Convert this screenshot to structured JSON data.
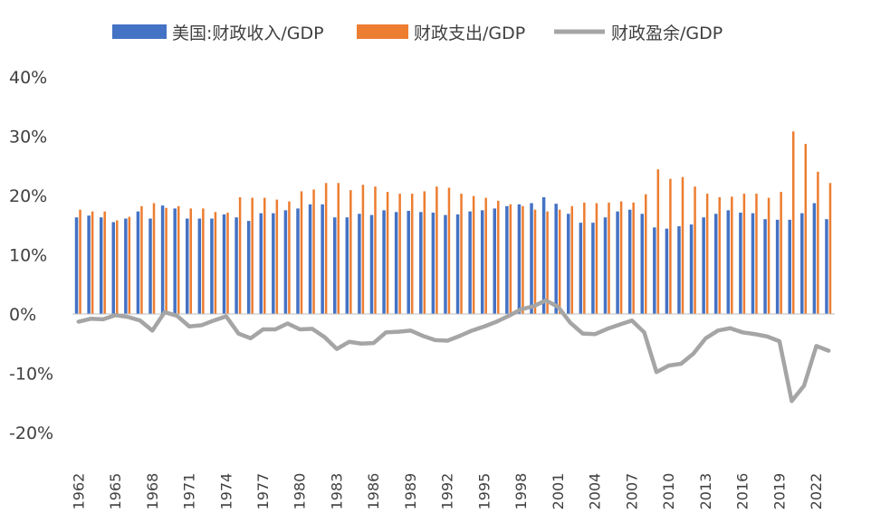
{
  "chart_data": {
    "type": "bar",
    "legend": {
      "position": "top",
      "items": [
        {
          "label": "美国:财政收入/GDP",
          "color": "#4472C4",
          "kind": "bar"
        },
        {
          "label": "财政支出/GDP",
          "color": "#ED7D31",
          "kind": "bar"
        },
        {
          "label": "财政盈余/GDP",
          "color": "#A5A5A5",
          "kind": "line"
        }
      ]
    },
    "y_ticks": [
      "40%",
      "30%",
      "20%",
      "10%",
      "0%",
      "-10%",
      "-20%"
    ],
    "ylim": [
      -20,
      40
    ],
    "grid": false,
    "x_tick_labels": [
      "1962",
      "1965",
      "1968",
      "1971",
      "1974",
      "1977",
      "1980",
      "1983",
      "1986",
      "1989",
      "1992",
      "1995",
      "1998",
      "2001",
      "2004",
      "2007",
      "2010",
      "2013",
      "2016",
      "2019",
      "2022"
    ],
    "categories": [
      "1962",
      "1963",
      "1964",
      "1965",
      "1966",
      "1967",
      "1968",
      "1969",
      "1970",
      "1971",
      "1972",
      "1973",
      "1974",
      "1975",
      "1976",
      "1977",
      "1978",
      "1979",
      "1980",
      "1981",
      "1982",
      "1983",
      "1984",
      "1985",
      "1986",
      "1987",
      "1988",
      "1989",
      "1990",
      "1991",
      "1992",
      "1993",
      "1994",
      "1995",
      "1996",
      "1997",
      "1998",
      "1999",
      "2000",
      "2001",
      "2002",
      "2003",
      "2004",
      "2005",
      "2006",
      "2007",
      "2008",
      "2009",
      "2010",
      "2011",
      "2012",
      "2013",
      "2014",
      "2015",
      "2016",
      "2017",
      "2018",
      "2019",
      "2020",
      "2021",
      "2022",
      "2023"
    ],
    "series": [
      {
        "name": "美国:财政收入/GDP",
        "type": "bar",
        "color": "#4472C4",
        "values": [
          16.3,
          16.6,
          16.3,
          15.5,
          16.1,
          17.3,
          16.1,
          18.3,
          17.8,
          16.1,
          16.1,
          16.1,
          16.8,
          16.3,
          15.7,
          17.0,
          17.0,
          17.5,
          17.8,
          18.5,
          18.5,
          16.3,
          16.3,
          16.9,
          16.7,
          17.5,
          17.2,
          17.4,
          17.2,
          17.1,
          16.7,
          16.8,
          17.3,
          17.5,
          17.8,
          18.2,
          18.5,
          18.7,
          19.7,
          18.6,
          16.9,
          15.4,
          15.4,
          16.3,
          17.3,
          17.6,
          16.9,
          14.6,
          14.4,
          14.8,
          15.1,
          16.3,
          16.9,
          17.5,
          17.1,
          17.0,
          16.0,
          15.9,
          15.9,
          17.0,
          18.7,
          16.0
        ]
      },
      {
        "name": "财政支出/GDP",
        "type": "bar",
        "color": "#ED7D31",
        "values": [
          17.6,
          17.3,
          17.3,
          15.8,
          16.4,
          18.2,
          18.7,
          17.9,
          18.2,
          17.8,
          17.8,
          17.2,
          17.1,
          19.7,
          19.6,
          19.6,
          19.3,
          19.0,
          20.7,
          21.0,
          22.1,
          22.1,
          20.9,
          21.8,
          21.5,
          20.6,
          20.3,
          20.3,
          20.7,
          21.5,
          21.3,
          20.3,
          19.9,
          19.6,
          19.1,
          18.5,
          18.2,
          17.6,
          17.3,
          17.6,
          18.2,
          18.8,
          18.7,
          18.8,
          19.0,
          18.8,
          20.2,
          24.4,
          22.8,
          23.1,
          21.5,
          20.3,
          19.7,
          19.8,
          20.3,
          20.3,
          19.6,
          20.6,
          30.8,
          28.7,
          24.0,
          22.1
        ]
      },
      {
        "name": "财政盈余/GDP",
        "type": "line",
        "color": "#A5A5A5",
        "values": [
          -1.3,
          -0.8,
          -0.9,
          -0.2,
          -0.5,
          -1.1,
          -2.8,
          0.3,
          -0.3,
          -2.1,
          -1.9,
          -1.1,
          -0.4,
          -3.3,
          -4.1,
          -2.6,
          -2.6,
          -1.6,
          -2.6,
          -2.5,
          -3.9,
          -5.9,
          -4.7,
          -5.0,
          -4.9,
          -3.1,
          -3.0,
          -2.8,
          -3.7,
          -4.4,
          -4.5,
          -3.7,
          -2.8,
          -2.1,
          -1.3,
          -0.3,
          0.8,
          1.3,
          2.3,
          1.2,
          -1.5,
          -3.3,
          -3.4,
          -2.5,
          -1.8,
          -1.1,
          -3.1,
          -9.8,
          -8.7,
          -8.4,
          -6.7,
          -4.1,
          -2.8,
          -2.4,
          -3.1,
          -3.4,
          -3.8,
          -4.6,
          -14.7,
          -12.1,
          -5.4,
          -6.2
        ]
      }
    ]
  }
}
